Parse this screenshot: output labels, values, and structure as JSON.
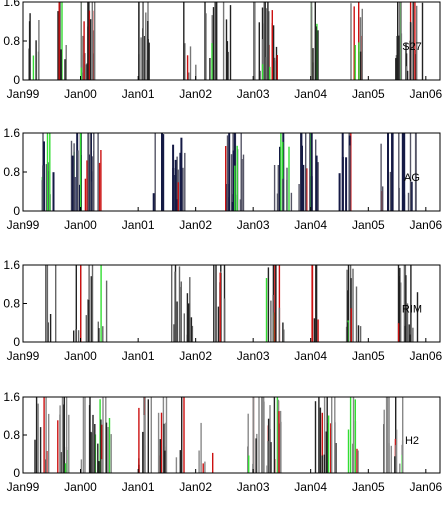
{
  "chart_data": [
    {
      "type": "bar",
      "label": "S27",
      "xlim": [
        "1999-01-01",
        "2006-04-01"
      ],
      "ylim": [
        0,
        1.6
      ],
      "yticks": [
        "0",
        "0.8",
        "1.6"
      ],
      "xticks": [
        "Jan99",
        "Jan00",
        "Jan01",
        "Jan02",
        "Jan03",
        "Jan04",
        "Jan05",
        "Jan06"
      ],
      "colors": {
        "dark": "#222222",
        "gray": "#777777",
        "green": "#33dd33",
        "red": "#cc1111"
      },
      "seed": 27
    },
    {
      "type": "bar",
      "label": "AG",
      "xlim": [
        "1999-01-01",
        "2006-04-01"
      ],
      "ylim": [
        0,
        1.6
      ],
      "yticks": [
        "0",
        "0.8",
        "1.6"
      ],
      "xticks": [
        "Jan99",
        "Jan00",
        "Jan01",
        "Jan02",
        "Jan03",
        "Jan04",
        "Jan05",
        "Jan06"
      ],
      "colors": {
        "dark": "#151a45",
        "gray": "#555566",
        "green": "#33dd33",
        "red": "#cc1111"
      },
      "seed": 41
    },
    {
      "type": "bar",
      "label": "RIM",
      "xlim": [
        "1999-01-01",
        "2006-04-01"
      ],
      "ylim": [
        0,
        1.6
      ],
      "yticks": [
        "0",
        "0.8",
        "1.6"
      ],
      "xticks": [
        "Jan99",
        "Jan00",
        "Jan01",
        "Jan02",
        "Jan03",
        "Jan04",
        "Jan05",
        "Jan06"
      ],
      "colors": {
        "dark": "#222222",
        "gray": "#666666",
        "green": "#33dd33",
        "red": "#cc1111"
      },
      "seed": 63
    },
    {
      "type": "bar",
      "label": "H2",
      "xlim": [
        "1999-01-01",
        "2006-04-01"
      ],
      "ylim": [
        0,
        1.6
      ],
      "yticks": [
        "0",
        "0.8",
        "1.6"
      ],
      "xticks": [
        "Jan99",
        "Jan00",
        "Jan01",
        "Jan02",
        "Jan03",
        "Jan04",
        "Jan05",
        "Jan06"
      ],
      "colors": {
        "dark": "#222222",
        "gray": "#888888",
        "green": "#33dd33",
        "red": "#cc1111"
      },
      "seed": 82
    }
  ]
}
